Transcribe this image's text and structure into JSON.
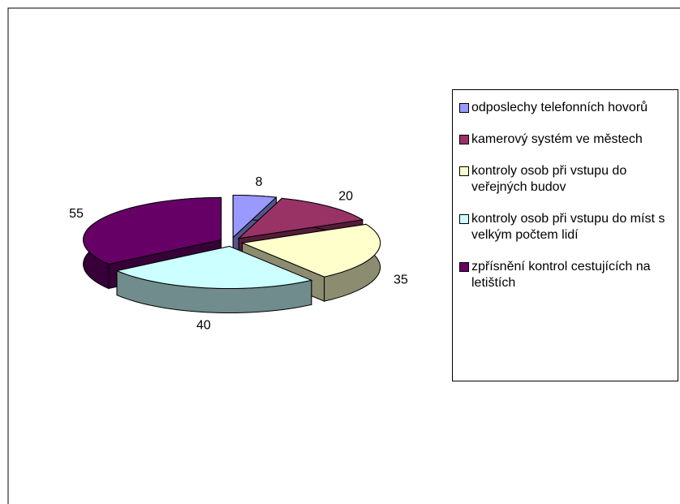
{
  "chart_data": {
    "type": "pie3d",
    "categories": [
      "odposlechy telefonních hovorů",
      "kamerový systém ve městech",
      "kontroly osob při vstupu do veřejných budov",
      "kontroly osob při vstupu do míst s velkým počtem lidí",
      "zpřísnění kontrol cestujících na letištích"
    ],
    "values": [
      8,
      20,
      35,
      40,
      55
    ],
    "colors": [
      "#9999ff",
      "#993366",
      "#ffffcc",
      "#ccffff",
      "#660066"
    ],
    "legend": "right"
  }
}
